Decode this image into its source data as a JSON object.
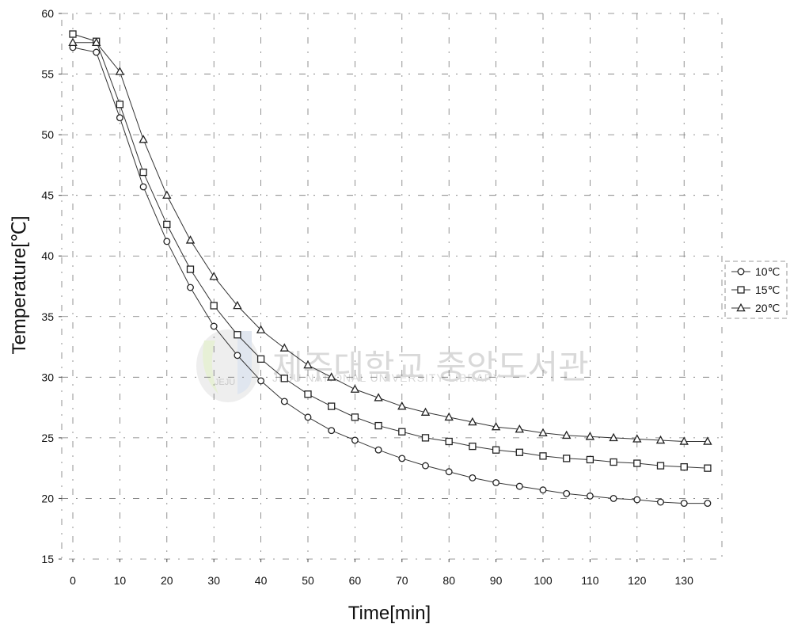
{
  "chart_data": {
    "type": "line",
    "xlabel": "Time[min]",
    "ylabel": "Temperature[℃]",
    "xlim": [
      0,
      135
    ],
    "ylim": [
      15,
      60
    ],
    "x_ticks": [
      0,
      10,
      20,
      30,
      40,
      50,
      60,
      70,
      80,
      90,
      100,
      110,
      120,
      130
    ],
    "y_ticks": [
      15,
      20,
      25,
      30,
      35,
      40,
      45,
      50,
      55,
      60
    ],
    "grid": true,
    "legend_position": "right",
    "x": [
      0,
      5,
      10,
      15,
      20,
      25,
      30,
      35,
      40,
      45,
      50,
      55,
      60,
      65,
      70,
      75,
      80,
      85,
      90,
      95,
      100,
      105,
      110,
      115,
      120,
      125,
      130,
      135
    ],
    "series": [
      {
        "name": "10℃",
        "marker": "circle",
        "values": [
          57.2,
          56.8,
          51.4,
          45.7,
          41.2,
          37.4,
          34.2,
          31.8,
          29.7,
          28.0,
          26.7,
          25.6,
          24.8,
          24.0,
          23.3,
          22.7,
          22.2,
          21.7,
          21.3,
          21.0,
          20.7,
          20.4,
          20.2,
          20.0,
          19.9,
          19.7,
          19.6,
          19.6
        ]
      },
      {
        "name": "15℃",
        "marker": "square",
        "values": [
          58.3,
          57.7,
          52.5,
          46.9,
          42.6,
          38.9,
          35.9,
          33.5,
          31.5,
          29.9,
          28.6,
          27.6,
          26.7,
          26.0,
          25.5,
          25.0,
          24.7,
          24.3,
          24.0,
          23.8,
          23.5,
          23.3,
          23.2,
          23.0,
          22.9,
          22.7,
          22.6,
          22.5
        ]
      },
      {
        "name": "20℃",
        "marker": "triangle",
        "values": [
          57.6,
          57.6,
          55.2,
          49.6,
          45.0,
          41.3,
          38.3,
          35.9,
          33.9,
          32.4,
          31.0,
          30.0,
          29.0,
          28.3,
          27.6,
          27.1,
          26.7,
          26.3,
          25.9,
          25.7,
          25.4,
          25.2,
          25.1,
          25.0,
          24.9,
          24.8,
          24.7,
          24.7
        ]
      }
    ]
  },
  "watermark": {
    "korean": "제주대학교 중앙도서관",
    "english": "JEJU NATIONAL UNIVERSITY LIBRARY",
    "logo_text": "JEJU"
  }
}
